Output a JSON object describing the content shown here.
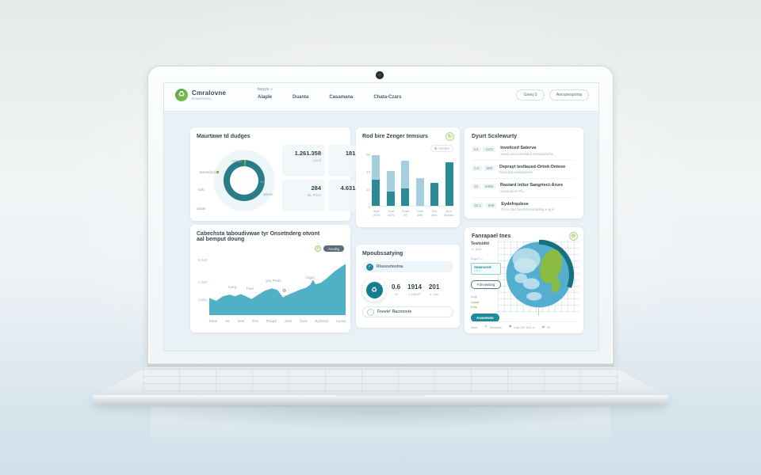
{
  "colors": {
    "accent_teal": "#2a8a96",
    "dark_teal": "#1f7f8e",
    "light_blue": "#a6cfdd",
    "green": "#7ab648",
    "area_fill": "#4fb0c6",
    "donut_ring": "#2a7d88",
    "donut_light": "#cfe9ef"
  },
  "topbar": {
    "brand": {
      "name": "Cmralovne",
      "subtitle": "Enwwhilitinu"
    },
    "dropdown": "bavps",
    "dropdown_chevron": "▾",
    "nav_items": [
      "Alaple",
      "Duanta",
      "Casamana",
      "Chata-Czars"
    ],
    "buttons": [
      "Gwej 0",
      "Aorspespóna"
    ]
  },
  "cards": {
    "budget": {
      "title": "Maurtawe td dudges",
      "donut": {
        "labels": [
          "Anluav",
          "tanert/jind",
          "tarb",
          "Skaer",
          "aal",
          "atares"
        ],
        "segments": [
          {
            "color": "#cfe9ef",
            "value": 10
          },
          {
            "color": "#7ab648",
            "value": 3
          },
          {
            "color": "#2a7d88",
            "value": 87
          }
        ]
      },
      "stats": [
        {
          "value": "1.261.358",
          "label": "jructi"
        },
        {
          "value": "181.280",
          "label": "nvctb"
        },
        {
          "value": "284",
          "label": "BL Prine"
        },
        {
          "value": "4.631.914",
          "label": "Slurdo"
        }
      ]
    },
    "emissions": {
      "title": "Rod bire Zenger temsurs",
      "header_icon_glyph": "↻",
      "legend": "Smdne",
      "chart_data": {
        "type": "bar",
        "categories": [
          [
            "3uer",
            "0025"
          ],
          [
            "Jrad",
            "u025"
          ],
          [
            "Ruek",
            "09"
          ],
          [
            "Ycae",
            "5d5"
          ],
          [
            "3vo",
            "3dm"
          ],
          [
            "Jrve",
            "3meba"
          ]
        ],
        "series": [
          {
            "name": "dark",
            "values": [
              15,
              8,
              10,
              0,
              13,
              25
            ]
          },
          {
            "name": "light",
            "values": [
              14,
              12,
              16,
              16,
              0,
              0
            ]
          }
        ],
        "y_ticks": [
          "05",
          "24",
          "10",
          "0"
        ],
        "ylim": [
          0,
          30
        ]
      }
    },
    "exports": {
      "title": "Dyurt Scxlewurty",
      "items": [
        {
          "codes": [
            "tur",
            "4101"
          ],
          "title": "Inveliced Saterva",
          "subtitle": "avied and inovaldial Sanwarfuera"
        },
        {
          "codes": [
            "0-2",
            "908"
          ],
          "title": "Deprayt texllausd-Ortnit-Ontese",
          "subtitle": "Eatordal-awilfasdone"
        },
        {
          "codes": [
            "03",
            "9408"
          ],
          "title": "Rastard in/tur Sangrtect-Arure",
          "subtitle": "Aasandere Piu"
        },
        {
          "codes": [
            "02.1",
            "848"
          ],
          "title": "Eydefrqulese",
          "subtitle": "Grev utur bevd itemredaltig e-guli"
        }
      ]
    },
    "timeline": {
      "title_line1": "Cabechsta taboudivwae tyr Onsetnderg otvont",
      "title_line2": "aal bemput doung",
      "badge": "Anvdtg",
      "badge_check": "✓",
      "corner_chip": "Oq gri",
      "marker_glyph": "♻",
      "chart_data": {
        "type": "area",
        "x_labels": [
          "Eave",
          "Jw",
          "Muti",
          "Errt",
          "Praqdi",
          "Juhe",
          "Dow",
          "Byintrup",
          "Lpowt"
        ],
        "y_labels": [
          "5.0u5",
          "1.0n0",
          "v.00u"
        ],
        "points": [
          [
            0,
            0.3
          ],
          [
            0.05,
            0.25
          ],
          [
            0.1,
            0.33
          ],
          [
            0.15,
            0.36
          ],
          [
            0.19,
            0.33
          ],
          [
            0.23,
            0.37
          ],
          [
            0.27,
            0.33
          ],
          [
            0.31,
            0.28
          ],
          [
            0.36,
            0.36
          ],
          [
            0.41,
            0.43
          ],
          [
            0.46,
            0.47
          ],
          [
            0.5,
            0.44
          ],
          [
            0.54,
            0.31
          ],
          [
            0.58,
            0.36
          ],
          [
            0.63,
            0.41
          ],
          [
            0.67,
            0.45
          ],
          [
            0.71,
            0.48
          ],
          [
            0.74,
            0.53
          ],
          [
            0.76,
            0.62
          ],
          [
            0.78,
            0.54
          ],
          [
            0.82,
            0.57
          ],
          [
            0.86,
            0.64
          ],
          [
            0.92,
            0.77
          ],
          [
            1,
            0.9
          ]
        ],
        "annotations": [
          {
            "text": "tuerg",
            "x": 0.17
          },
          {
            "text": "Fuer",
            "x": 0.3
          },
          {
            "text": "yon Prwls",
            "x": 0.47
          },
          {
            "text": "Lega)",
            "x": 0.74
          }
        ],
        "marker_x": 0.55
      }
    },
    "measuring": {
      "title": "Mpoubssatying",
      "pill_top": "Rlsuvurtevtna",
      "pill_top_glyph": "✓",
      "circle_glyph": "♻",
      "metrics": [
        {
          "value": "0.6",
          "label": "Tir"
        },
        {
          "value": "1914",
          "label": "4.2aj/HP"
        },
        {
          "value": "201",
          "label": "4.7mv"
        }
      ],
      "pill_bottom": "Fnevte' Racrnnvte",
      "pill_bottom_glyph": "◌"
    },
    "map": {
      "title": "Fanrapael tnes",
      "header_icon_glyph": "⟳",
      "side": {
        "heading": "Tewtsidtd",
        "subheading": "-v. juta",
        "label": "Bqjct?:-r",
        "box_value": "Sewnored",
        "box_sub": "c-tr 4",
        "outline_button": "Fdnvwdwig",
        "note": "Aug!",
        "tags": [
          "Lysae",
          "Ertq;"
        ],
        "cta": "Asawewts"
      },
      "footer": [
        {
          "icon": "",
          "text": "Atue"
        },
        {
          "icon": "✎",
          "text": "Twvdtwa"
        },
        {
          "icon": "⚑",
          "text": "Ludt XH 100 -u"
        },
        {
          "icon": "⇄",
          "text": "25"
        }
      ]
    }
  }
}
